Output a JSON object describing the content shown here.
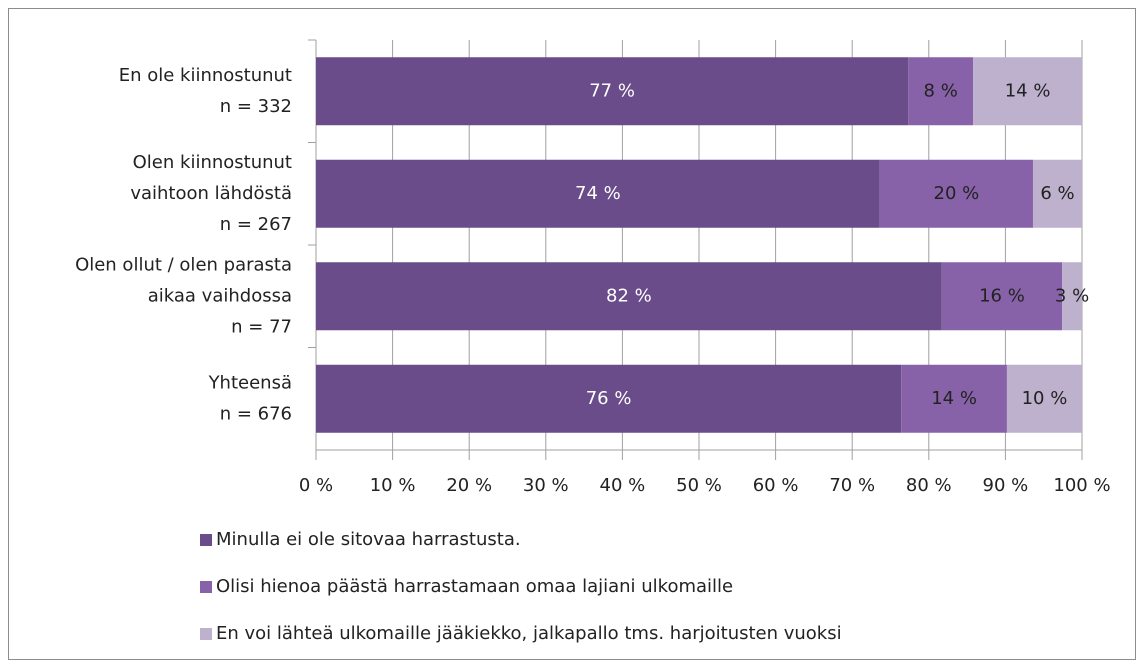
{
  "chart_data": {
    "type": "bar",
    "orientation": "horizontal",
    "stacked": true,
    "categories": [
      [
        "En ole kiinnostunut",
        "n = 332"
      ],
      [
        "Olen kiinnostunut",
        "vaihtoon lähdöstä",
        "n = 267"
      ],
      [
        "Olen ollut / olen parasta",
        "aikaa vaihdossa",
        "n = 77"
      ],
      [
        "Yhteensä",
        "n = 676"
      ]
    ],
    "series": [
      {
        "name": "Minulla ei ole sitovaa harrastusta.",
        "color": "#6a4c8a",
        "values": [
          77.3,
          73.6,
          81.7,
          76.4
        ],
        "value_labels": [
          "77 %",
          "74 %",
          "82 %",
          "76 %"
        ]
      },
      {
        "name": "Olisi hienoa päästä harrastamaan omaa lajiani ulkomaille",
        "color": "#8762a8",
        "values": [
          8.5,
          20.0,
          15.7,
          13.8
        ],
        "value_labels": [
          "8 %",
          "20 %",
          "16 %",
          "14 %"
        ]
      },
      {
        "name": "En voi lähteä ulkomaille jääkiekko, jalkapallo tms. harjoitusten vuoksi",
        "color": "#bdb1cd",
        "values": [
          14.2,
          6.4,
          2.6,
          9.8
        ],
        "value_labels": [
          "14 %",
          "6 %",
          "3 %",
          "10 %"
        ]
      }
    ],
    "xlim": [
      0,
      100
    ],
    "xticks": [
      {
        "value": 0,
        "label": "0 %"
      },
      {
        "value": 10,
        "label": "10 %"
      },
      {
        "value": 20,
        "label": "20 %"
      },
      {
        "value": 30,
        "label": "30 %"
      },
      {
        "value": 40,
        "label": "40 %"
      },
      {
        "value": 50,
        "label": "50 %"
      },
      {
        "value": 60,
        "label": "60 %"
      },
      {
        "value": 70,
        "label": "70 %"
      },
      {
        "value": 80,
        "label": "80 %"
      },
      {
        "value": 90,
        "label": "90 %"
      },
      {
        "value": 100,
        "label": "100 %"
      }
    ],
    "grid": true,
    "legend": "bottom"
  }
}
